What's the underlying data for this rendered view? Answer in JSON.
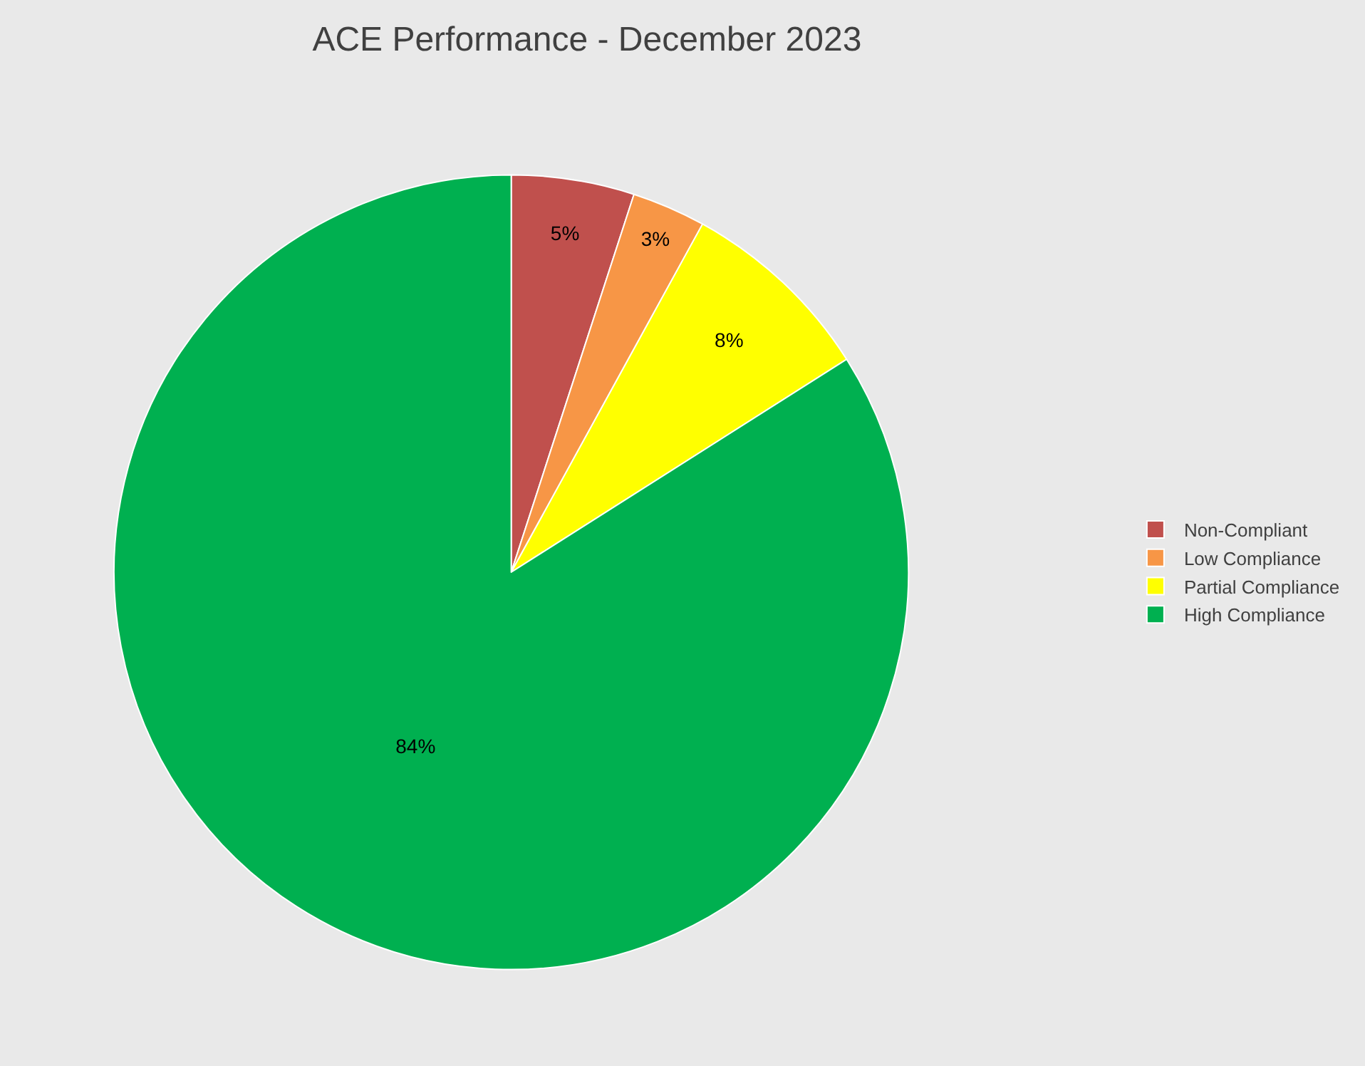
{
  "chart_data": {
    "type": "pie",
    "title": "ACE Performance - December 2023",
    "categories": [
      "Non-Compliant",
      "Low Compliance",
      "Partial Compliance",
      "High Compliance"
    ],
    "values": [
      5,
      3,
      8,
      84
    ],
    "value_labels": [
      "5%",
      "3%",
      "8%",
      "84%"
    ],
    "colors": [
      "#c0504d",
      "#f79646",
      "#ffff00",
      "#00b050"
    ],
    "legend": "right"
  }
}
